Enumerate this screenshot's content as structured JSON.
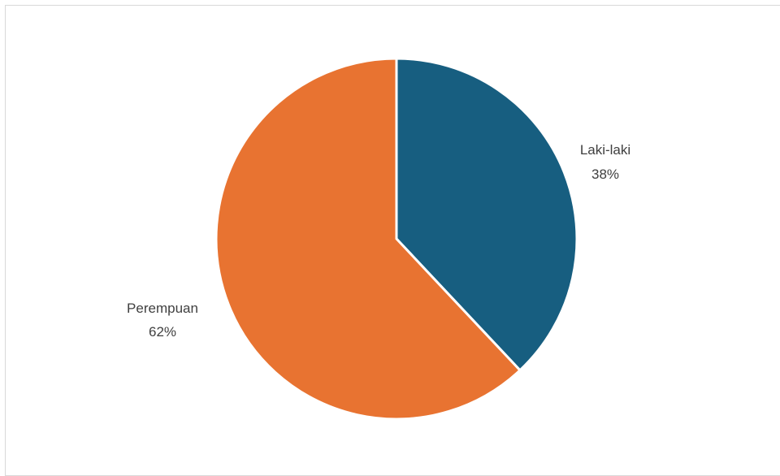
{
  "chart_data": {
    "type": "pie",
    "title": "",
    "slices": [
      {
        "label": "Laki-laki",
        "value": 38,
        "percent_label": "38%",
        "color": "#175e80"
      },
      {
        "label": "Perempuan",
        "value": 62,
        "percent_label": "62%",
        "color": "#e87331"
      }
    ],
    "start_angle": "12 o'clock",
    "direction": "clockwise",
    "legend": "none",
    "data_labels": "outside"
  },
  "labels": {
    "laki_laki_name": "Laki-laki",
    "laki_laki_pct": "38%",
    "perempuan_name": "Perempuan",
    "perempuan_pct": "62%"
  }
}
